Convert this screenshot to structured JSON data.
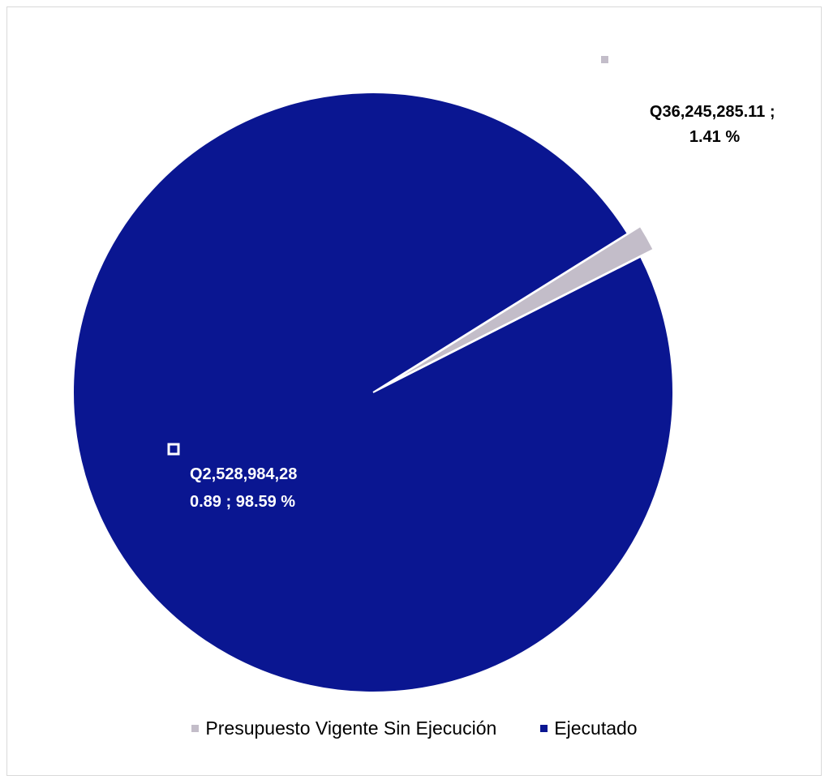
{
  "chart_data": {
    "type": "pie",
    "title": "",
    "series": [
      {
        "name": "Presupuesto Vigente Sin Ejecución",
        "value": 36245285.11,
        "percent": 1.41,
        "label_line1": "Q36,245,285.11 ;",
        "label_line2": "1.41 %",
        "color": "#c3bdc9"
      },
      {
        "name": "Ejecutado",
        "value": 2528984280.89,
        "percent": 98.59,
        "label_line1": "Q2,528,984,28",
        "label_line2": "0.89 ; 98.59 %",
        "color": "#0a1691"
      }
    ],
    "legend_position": "bottom"
  }
}
